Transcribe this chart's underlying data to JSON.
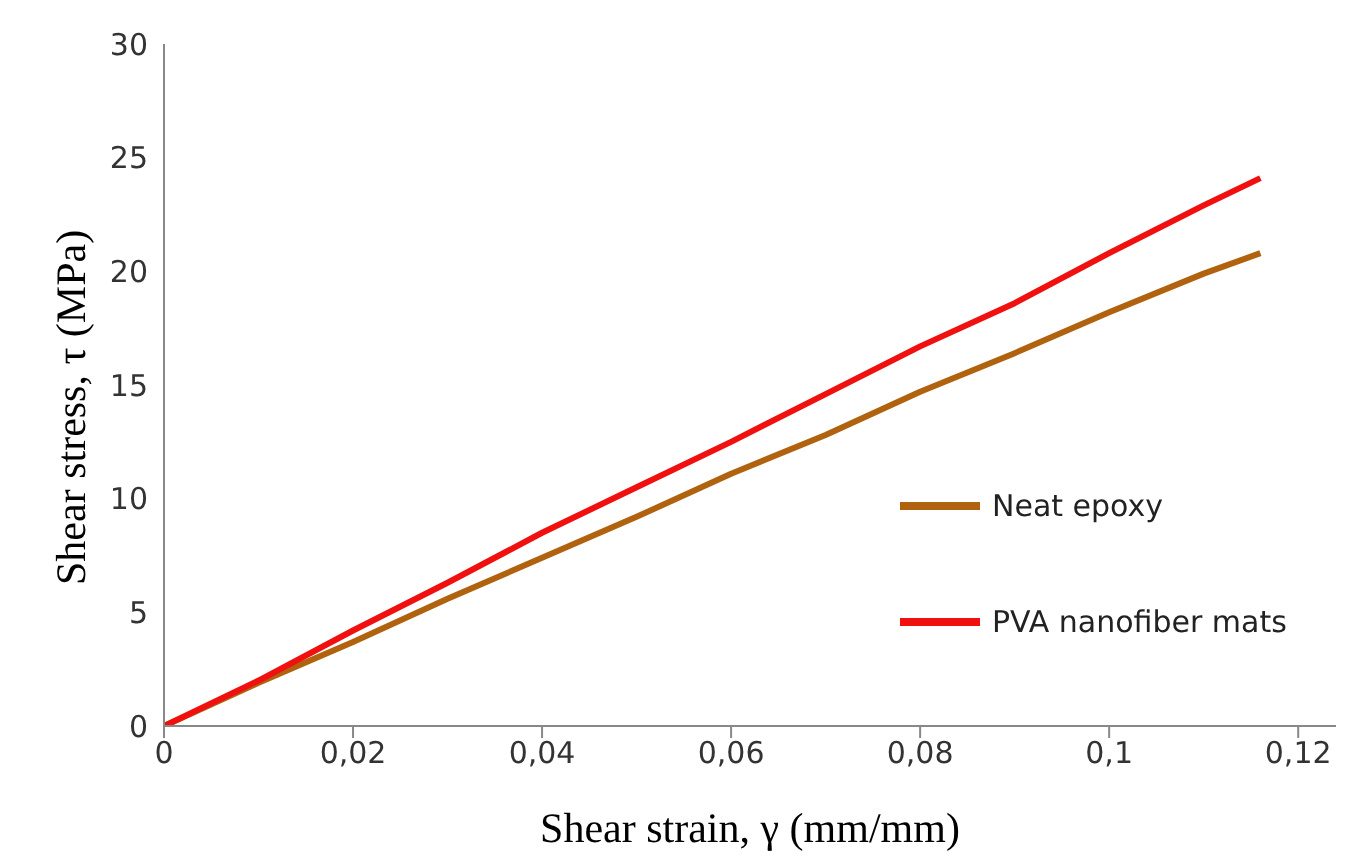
{
  "chart_data": {
    "type": "line",
    "xlabel": "Shear strain, γ (mm/mm)",
    "ylabel": "Shear stress, τ (MPa)",
    "xlim": [
      0,
      0.124
    ],
    "xticks": [
      0,
      {
        "value": 0.02,
        "label": "0,02"
      },
      {
        "value": 0.04,
        "label": "0,04"
      },
      {
        "value": 0.06,
        "label": "0,06"
      },
      {
        "value": 0.08,
        "label": "0,08"
      },
      {
        "value": 0.1,
        "label": "0,1"
      },
      {
        "value": 0.12,
        "label": "0,12"
      }
    ],
    "ylim": [
      0,
      30
    ],
    "yticks": [
      0,
      5,
      10,
      15,
      20,
      25,
      30
    ],
    "grid": false,
    "legend": "right",
    "marker": "none",
    "line_style": "solid",
    "x": [
      0,
      0.01,
      0.02,
      0.03,
      0.04,
      0.05,
      0.06,
      0.07,
      0.08,
      0.09,
      0.1,
      0.11,
      0.116
    ],
    "series": [
      {
        "name": "Neat epoxy",
        "color": "#b0620f",
        "values": [
          0,
          1.9,
          3.7,
          5.6,
          7.4,
          9.2,
          11.1,
          12.8,
          14.7,
          16.4,
          18.2,
          19.9,
          20.8
        ]
      },
      {
        "name": "PVA nanofiber mats",
        "color": "#f01010",
        "values": [
          0,
          2.0,
          4.2,
          6.3,
          8.5,
          10.5,
          12.5,
          14.6,
          16.7,
          18.6,
          20.8,
          22.9,
          24.1
        ]
      }
    ]
  }
}
